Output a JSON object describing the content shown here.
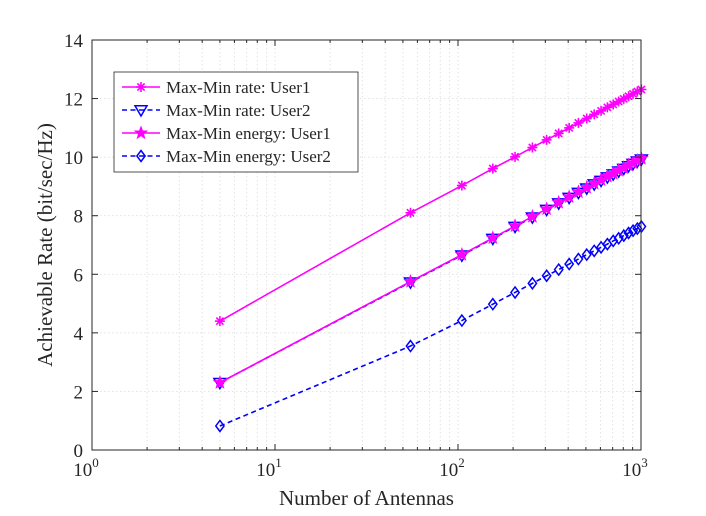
{
  "chart_data": {
    "type": "line",
    "xscale": "log",
    "xlabel": "Number of Antennas",
    "ylabel": "Achievable Rate (bit/sec/Hz)",
    "xlim": [
      1,
      1000
    ],
    "ylim": [
      0,
      14
    ],
    "grid": true,
    "legend_position": "top-left",
    "x_ticks": [
      {
        "base": "10",
        "exp": "0",
        "value": 1
      },
      {
        "base": "10",
        "exp": "1",
        "value": 10
      },
      {
        "base": "10",
        "exp": "2",
        "value": 100
      },
      {
        "base": "10",
        "exp": "3",
        "value": 1000
      }
    ],
    "y_ticks": [
      {
        "label": "0",
        "value": 0
      },
      {
        "label": "2",
        "value": 2
      },
      {
        "label": "4",
        "value": 4
      },
      {
        "label": "6",
        "value": 6
      },
      {
        "label": "8",
        "value": 8
      },
      {
        "label": "10",
        "value": 10
      },
      {
        "label": "12",
        "value": 12
      },
      {
        "label": "14",
        "value": 14
      }
    ],
    "x": [
      5,
      55,
      105,
      155,
      205,
      255,
      305,
      355,
      405,
      455,
      505,
      555,
      605,
      655,
      705,
      755,
      805,
      855,
      905,
      955,
      1005
    ],
    "series": [
      {
        "name": "Max-Min rate: User1",
        "color": "#ff00ff",
        "line": "solid",
        "marker": "asterisk",
        "values": [
          4.4,
          8.1,
          9.03,
          9.61,
          10.01,
          10.33,
          10.59,
          10.81,
          11.0,
          11.17,
          11.32,
          11.46,
          11.58,
          11.7,
          11.8,
          11.9,
          11.99,
          12.08,
          12.16,
          12.24,
          12.31
        ]
      },
      {
        "name": "Max-Min rate: User2",
        "color": "#0000ff",
        "line": "dashed",
        "marker": "triangle-down",
        "values": [
          2.3,
          5.73,
          6.65,
          7.22,
          7.63,
          7.95,
          8.21,
          8.43,
          8.62,
          8.79,
          8.94,
          9.08,
          9.2,
          9.32,
          9.42,
          9.52,
          9.61,
          9.7,
          9.78,
          9.86,
          9.93
        ]
      },
      {
        "name": "Max-Min energy: User1",
        "color": "#ff00ff",
        "line": "solid",
        "marker": "star",
        "values": [
          2.3,
          5.75,
          6.67,
          7.24,
          7.65,
          7.97,
          8.23,
          8.45,
          8.64,
          8.81,
          8.96,
          9.1,
          9.22,
          9.34,
          9.44,
          9.54,
          9.63,
          9.72,
          9.8,
          9.88,
          9.95
        ]
      },
      {
        "name": "Max-Min energy: User2",
        "color": "#0000ff",
        "line": "dashed",
        "marker": "diamond",
        "values": [
          0.82,
          3.55,
          4.42,
          4.98,
          5.38,
          5.69,
          5.95,
          6.16,
          6.35,
          6.52,
          6.67,
          6.8,
          6.92,
          7.03,
          7.14,
          7.23,
          7.32,
          7.41,
          7.49,
          7.56,
          7.63
        ]
      }
    ]
  }
}
